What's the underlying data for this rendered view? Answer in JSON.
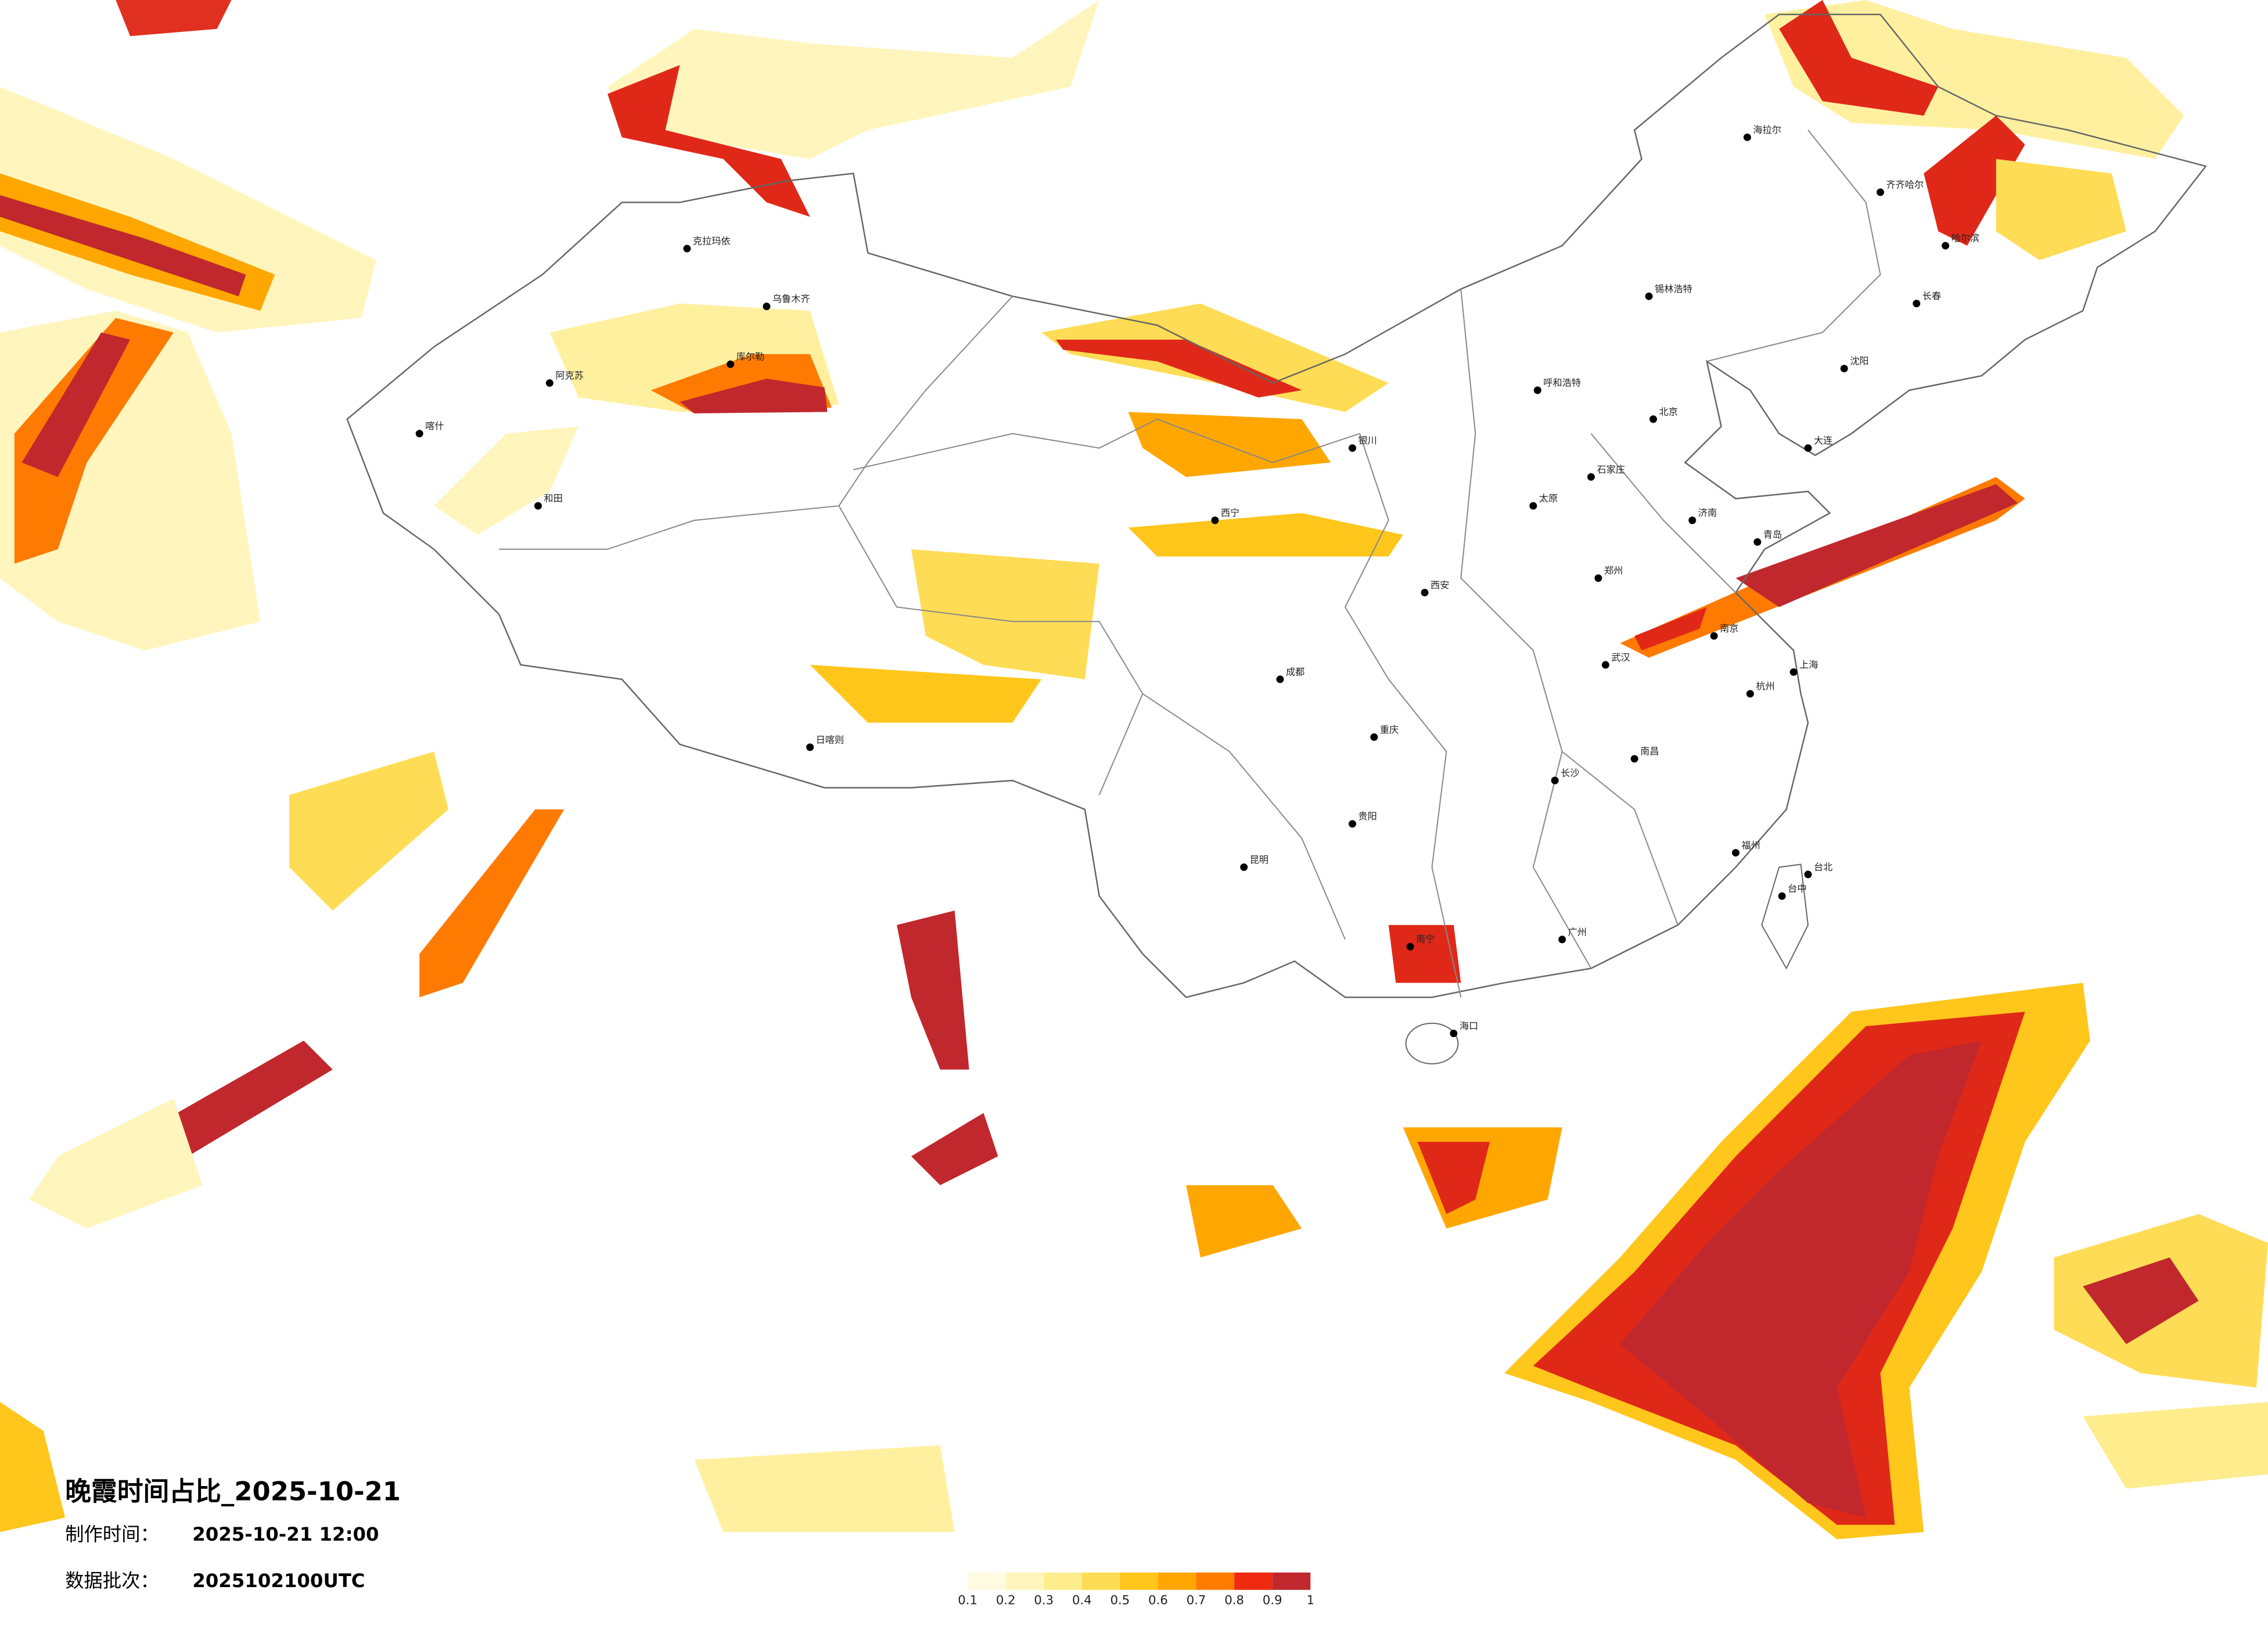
{
  "title": "晚霞时间占比_2025-10-21",
  "production_time": {
    "label": "制作时间：",
    "value": "2025-10-21 12:00"
  },
  "batch": {
    "label": "数据批次：",
    "value": "2025102100UTC"
  },
  "legend": {
    "colors": [
      "#fffbe3",
      "#fff5bd",
      "#ffec8c",
      "#ffdc55",
      "#ffc61c",
      "#ffa700",
      "#ff7a00",
      "#f02a10",
      "#c0282d"
    ],
    "ticks": [
      0.1,
      0.2,
      0.3,
      0.4,
      0.5,
      0.6,
      0.7,
      0.8,
      0.9,
      1
    ]
  },
  "cities": [
    "克拉玛依",
    "乌鲁木齐",
    "库尔勒",
    "阿克苏",
    "喀什",
    "和田",
    "日喀则",
    "西宁",
    "银川",
    "呼和浩特",
    "北京",
    "石家庄",
    "太原",
    "济南",
    "郑州",
    "西安",
    "成都",
    "重庆",
    "武汉",
    "长沙",
    "南昌",
    "杭州",
    "南京",
    "上海",
    "福州",
    "广州",
    "南宁",
    "海口",
    "昆明",
    "贵阳",
    "哈尔滨",
    "长春",
    "沈阳",
    "大连",
    "青岛",
    "台北",
    "台中",
    "海拉尔",
    "齐齐哈尔",
    "锡林浩特"
  ]
}
